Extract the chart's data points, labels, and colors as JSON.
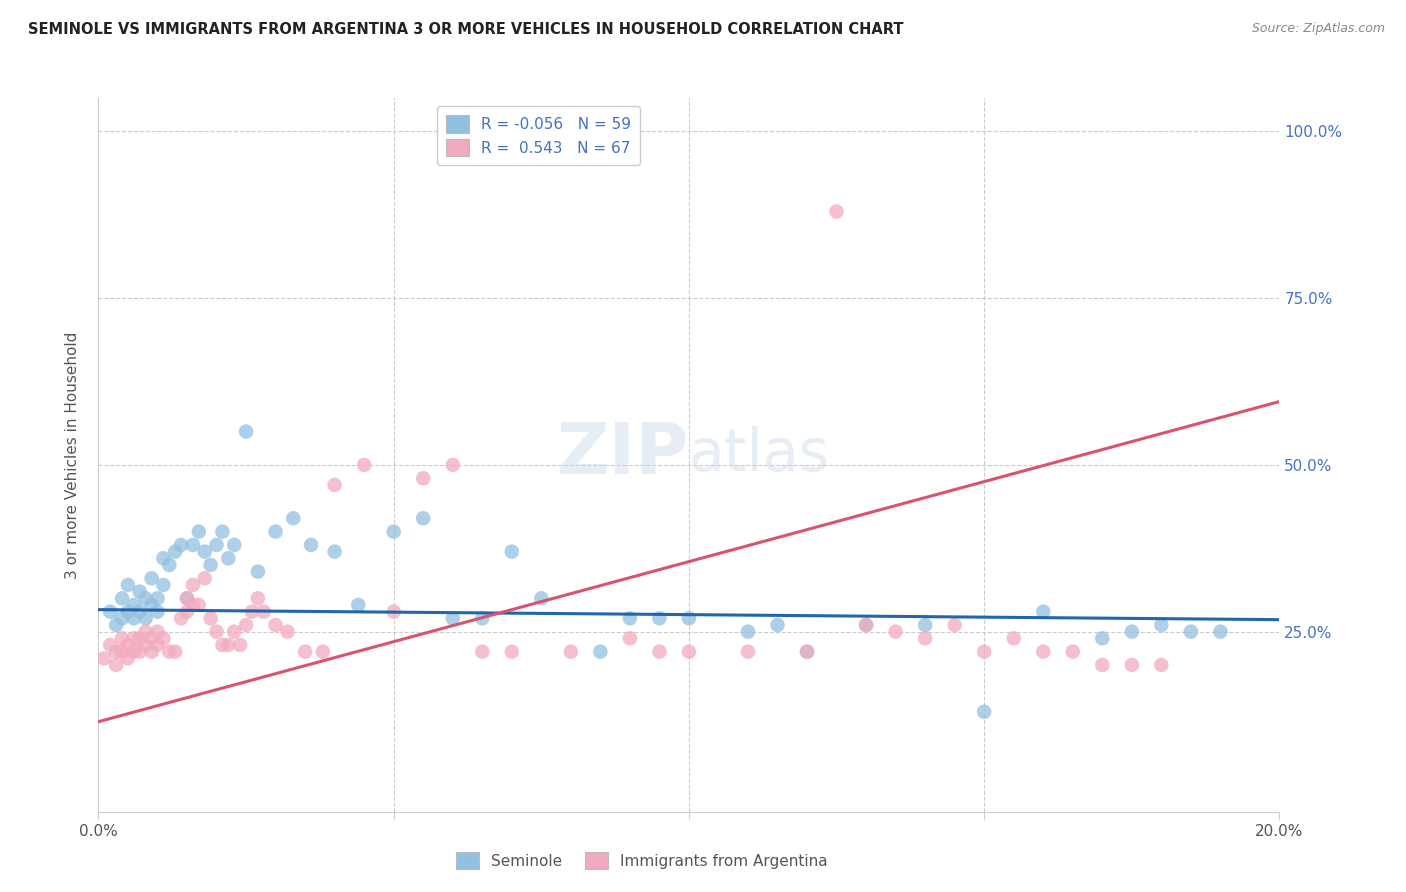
{
  "title": "SEMINOLE VS IMMIGRANTS FROM ARGENTINA 3 OR MORE VEHICLES IN HOUSEHOLD CORRELATION CHART",
  "source": "Source: ZipAtlas.com",
  "ylabel": "3 or more Vehicles in Household",
  "xlim": [
    0.0,
    0.2
  ],
  "ylim": [
    -0.02,
    1.05
  ],
  "legend_blue_R": "-0.056",
  "legend_blue_N": "59",
  "legend_pink_R": " 0.543",
  "legend_pink_N": "67",
  "blue_color": "#92c0e0",
  "pink_color": "#f2aabe",
  "line_blue_color": "#2166ac",
  "line_pink_color": "#d9536f",
  "blue_line_x": [
    0.0,
    0.2
  ],
  "blue_line_y": [
    0.283,
    0.268
  ],
  "pink_line_x": [
    0.0,
    0.2
  ],
  "pink_line_y": [
    0.115,
    0.595
  ],
  "ytick_vals": [
    0.0,
    0.25,
    0.5,
    0.75,
    1.0
  ],
  "ytick_right_labels": [
    "",
    "25.0%",
    "50.0%",
    "75.0%",
    "100.0%"
  ],
  "xtick_positions": [
    0.0,
    0.05,
    0.1,
    0.15,
    0.2
  ],
  "xtick_labels": [
    "0.0%",
    "",
    "",
    "",
    "20.0%"
  ],
  "blue_scatter_x": [
    0.002,
    0.003,
    0.004,
    0.004,
    0.005,
    0.005,
    0.006,
    0.006,
    0.007,
    0.007,
    0.008,
    0.008,
    0.009,
    0.009,
    0.01,
    0.01,
    0.011,
    0.011,
    0.012,
    0.013,
    0.014,
    0.015,
    0.016,
    0.017,
    0.018,
    0.019,
    0.02,
    0.021,
    0.022,
    0.023,
    0.025,
    0.027,
    0.03,
    0.033,
    0.036,
    0.04,
    0.044,
    0.05,
    0.055,
    0.06,
    0.065,
    0.07,
    0.075,
    0.085,
    0.09,
    0.095,
    0.1,
    0.11,
    0.115,
    0.12,
    0.13,
    0.14,
    0.15,
    0.16,
    0.17,
    0.175,
    0.18,
    0.185,
    0.19
  ],
  "blue_scatter_y": [
    0.28,
    0.26,
    0.27,
    0.3,
    0.28,
    0.32,
    0.27,
    0.29,
    0.28,
    0.31,
    0.27,
    0.3,
    0.29,
    0.33,
    0.28,
    0.3,
    0.32,
    0.36,
    0.35,
    0.37,
    0.38,
    0.3,
    0.38,
    0.4,
    0.37,
    0.35,
    0.38,
    0.4,
    0.36,
    0.38,
    0.55,
    0.34,
    0.4,
    0.42,
    0.38,
    0.37,
    0.29,
    0.4,
    0.42,
    0.27,
    0.27,
    0.37,
    0.3,
    0.22,
    0.27,
    0.27,
    0.27,
    0.25,
    0.26,
    0.22,
    0.26,
    0.26,
    0.13,
    0.28,
    0.24,
    0.25,
    0.26,
    0.25,
    0.25
  ],
  "pink_scatter_x": [
    0.001,
    0.002,
    0.003,
    0.003,
    0.004,
    0.004,
    0.005,
    0.005,
    0.006,
    0.006,
    0.007,
    0.007,
    0.008,
    0.008,
    0.009,
    0.009,
    0.01,
    0.01,
    0.011,
    0.012,
    0.013,
    0.014,
    0.015,
    0.015,
    0.016,
    0.016,
    0.017,
    0.018,
    0.019,
    0.02,
    0.021,
    0.022,
    0.023,
    0.024,
    0.025,
    0.026,
    0.027,
    0.028,
    0.03,
    0.032,
    0.035,
    0.038,
    0.04,
    0.045,
    0.05,
    0.055,
    0.06,
    0.065,
    0.07,
    0.08,
    0.09,
    0.095,
    0.1,
    0.11,
    0.12,
    0.125,
    0.13,
    0.135,
    0.14,
    0.145,
    0.15,
    0.155,
    0.16,
    0.165,
    0.17,
    0.175,
    0.18
  ],
  "pink_scatter_y": [
    0.21,
    0.23,
    0.2,
    0.22,
    0.22,
    0.24,
    0.21,
    0.23,
    0.22,
    0.24,
    0.22,
    0.24,
    0.23,
    0.25,
    0.22,
    0.24,
    0.23,
    0.25,
    0.24,
    0.22,
    0.22,
    0.27,
    0.28,
    0.3,
    0.29,
    0.32,
    0.29,
    0.33,
    0.27,
    0.25,
    0.23,
    0.23,
    0.25,
    0.23,
    0.26,
    0.28,
    0.3,
    0.28,
    0.26,
    0.25,
    0.22,
    0.22,
    0.47,
    0.5,
    0.28,
    0.48,
    0.5,
    0.22,
    0.22,
    0.22,
    0.24,
    0.22,
    0.22,
    0.22,
    0.22,
    0.88,
    0.26,
    0.25,
    0.24,
    0.26,
    0.22,
    0.24,
    0.22,
    0.22,
    0.2,
    0.2,
    0.2
  ]
}
